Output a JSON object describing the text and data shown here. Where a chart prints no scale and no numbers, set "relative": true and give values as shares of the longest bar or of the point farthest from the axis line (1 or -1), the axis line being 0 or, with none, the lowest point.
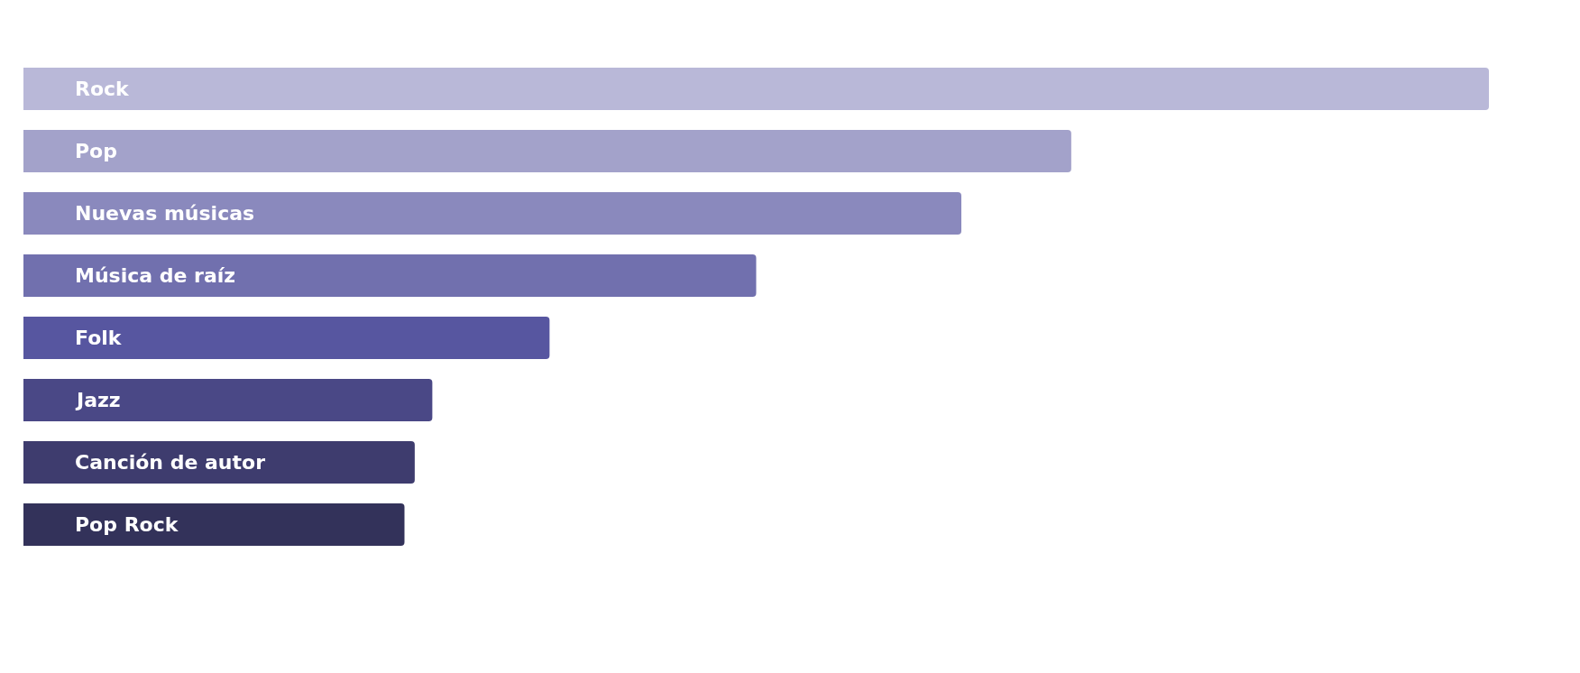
{
  "chart_data": {
    "type": "bar",
    "orientation": "horizontal",
    "relative": true,
    "categories": [
      "Rock",
      "Pop",
      "Nuevas músicas",
      "Música de raíz",
      "Folk",
      "Jazz",
      "Canción de autor",
      "Pop Rock"
    ],
    "values": [
      1,
      0.715,
      0.64,
      0.5,
      0.359,
      0.279,
      0.267,
      0.26
    ],
    "colors": [
      "#b9b8d8",
      "#a3a2ca",
      "#8a89bd",
      "#7170ae",
      "#5756a0",
      "#4a4886",
      "#3e3c6e",
      "#33325a"
    ]
  }
}
